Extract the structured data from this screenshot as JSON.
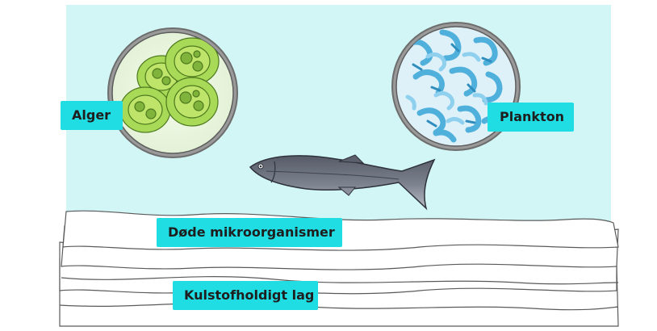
{
  "labels": {
    "algae": "Alger",
    "plankton": "Plankton",
    "dead_microorganisms": "Døde mikroorganismer",
    "carbon_layer": "Kulstofholdigt lag"
  },
  "icons": {
    "algae_lens": "algae-magnified-icon",
    "plankton_lens": "plankton-magnified-icon",
    "fish": "fish-icon"
  },
  "colors": {
    "water": "#d2f5f5",
    "label_bg": "#1fdde3",
    "lens_rim": "#8a8a8a",
    "algae_green": "#9ad24a",
    "plankton_blue": "#5bb6e0",
    "fish_body": "#6e7380",
    "sediment": "#ffffff"
  }
}
